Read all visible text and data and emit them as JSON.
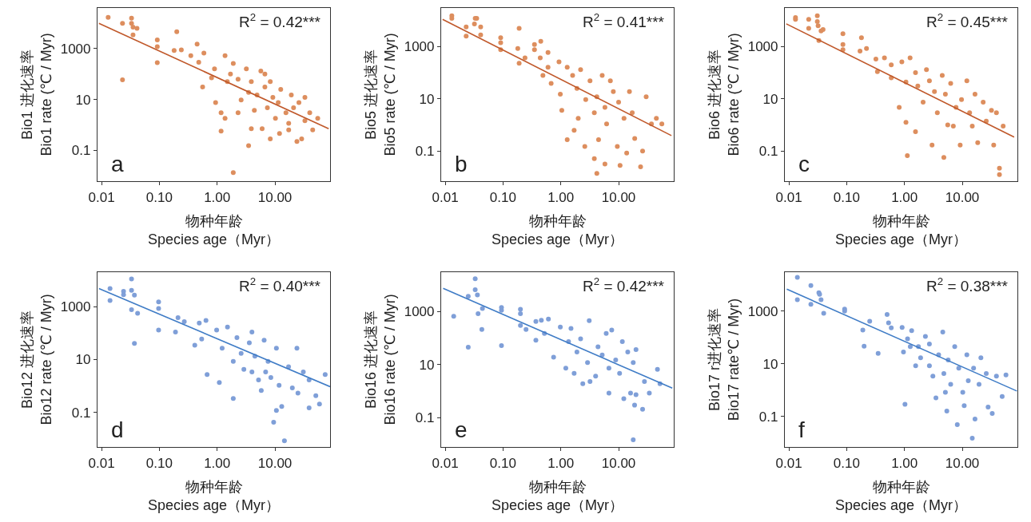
{
  "chart_data": [
    {
      "type": "scatter",
      "xlabel": "物种年龄\nSpecies age（Myr）",
      "ylabel": "Bio1 进化速率\nBio1 rate (℃ / Myr)",
      "annotations": [
        "R$^{2}$ = 0.42***",
        "a"
      ],
      "log": "xy",
      "grid": false,
      "marker": "circle",
      "xlim": [
        0.0085,
        90
      ],
      "xticks": [
        {
          "value": 0.01,
          "label": "0.01"
        },
        {
          "value": 0.1,
          "label": "0.10"
        },
        {
          "value": 1,
          "label": "1.00"
        },
        {
          "value": 10,
          "label": "10.00"
        }
      ],
      "ylim": [
        0.006,
        40000
      ],
      "yticks": [
        0.1,
        10,
        1000
      ],
      "series": [
        {
          "color": "#dd8e5e",
          "x": [
            0.013,
            0.023,
            0.033,
            0.033,
            0.035,
            0.041,
            0.035,
            0.023,
            0.092,
            0.092,
            0.092,
            0.2,
            0.18,
            0.24,
            0.35,
            0.45,
            0.59,
            0.48,
            0.56,
            0.9,
            0.8,
            0.94,
            1.17,
            1.37,
            1.5,
            1.9,
            2.3,
            2.6,
            3.2,
            3.5,
            3.9,
            4.4,
            4.9,
            5.7,
            6.7,
            7.4,
            8.3,
            9.2,
            10.2,
            11.4,
            12,
            12.6,
            15.5,
            17.3,
            19.2,
            21,
            26,
            33,
            40,
            45,
            55,
            24,
            3.5,
            1.9,
            1.37,
            1.17,
            2.3,
            6,
            8.3,
            29,
            17.3,
            33,
            1.7,
            3.9,
            6.7
          ],
          "values": [
            17000,
            10000,
            16000,
            10000,
            7100,
            6300,
            3500,
            59,
            2200,
            1200,
            280,
            4600,
            850,
            890,
            530,
            1500,
            670,
            290,
            31,
            160,
            71,
            7.5,
            0.56,
            530,
            50,
            260,
            63,
            9.5,
            160,
            19,
            50,
            3.7,
            15,
            130,
            31,
            4.7,
            50,
            12,
            1.8,
            7.5,
            0.45,
            25,
            3,
            1.15,
            15,
            4.7,
            7.5,
            1.45,
            3,
            0.63,
            1.8,
            0.22,
            0.15,
            0.013,
            1.8,
            3,
            3,
            0.7,
            0.28,
            0.28,
            0.63,
            12,
            100,
            0.7,
            100
          ]
        },
        {
          "type": "line",
          "marker": "none",
          "color": "#c0582a",
          "x": [
            0.009,
            85
          ],
          "values": [
            10000,
            0.7
          ]
        }
      ]
    },
    {
      "type": "scatter",
      "xlabel": "物种年龄\nSpecies age（Myr）",
      "ylabel": "Bio5 进化速率\nBio5 rate (℃ / Myr)",
      "annotations": [
        "R$^{2}$ = 0.41***",
        "b"
      ],
      "log": "xy",
      "grid": false,
      "marker": "circle",
      "xlim": [
        0.0085,
        90
      ],
      "xticks": [
        {
          "value": 0.01,
          "label": "0.01"
        },
        {
          "value": 0.1,
          "label": "0.10"
        },
        {
          "value": 1,
          "label": "1.00"
        },
        {
          "value": 10,
          "label": "10.00"
        }
      ],
      "ylim": [
        0.007,
        30000
      ],
      "yticks": [
        0.1,
        10,
        1000
      ],
      "series": [
        {
          "color": "#dd8e5e",
          "x": [
            0.013,
            0.013,
            0.023,
            0.023,
            0.033,
            0.035,
            0.032,
            0.041,
            0.041,
            0.091,
            0.091,
            0.091,
            0.18,
            0.19,
            0.19,
            0.24,
            0.35,
            0.35,
            0.45,
            0.44,
            0.6,
            0.6,
            0.49,
            0.68,
            0.93,
            0.98,
            1.04,
            1.29,
            1.29,
            1.6,
            1.7,
            1.9,
            2.0,
            2.2,
            2.6,
            2.7,
            3.2,
            3.8,
            4.2,
            4.2,
            4.5,
            5.2,
            5.8,
            6.2,
            7.2,
            8.1,
            9.5,
            10,
            10.6,
            12.4,
            13.8,
            15.4,
            17.2,
            19,
            24,
            30,
            26,
            37,
            45,
            56,
            5.8,
            3.8
          ],
          "values": [
            15000,
            12000,
            5600,
            2500,
            12000,
            12000,
            7400,
            5600,
            2800,
            2200,
            1400,
            760,
            850,
            5000,
            230,
            370,
            1200,
            760,
            1600,
            370,
            590,
            160,
            79,
            39,
            260,
            15,
            3.6,
            160,
            0.27,
            79,
            0.62,
            25,
            1.8,
            130,
            0.15,
            9.4,
            49,
            2.9,
            12,
            0.014,
            0.27,
            79,
            4.7,
            1.1,
            49,
            19,
            0.15,
            7.4,
            0.028,
            1.8,
            0.083,
            19,
            2.9,
            0.3,
            0.025,
            12,
            0.1,
            1.1,
            1.8,
            1.1,
            0.032,
            0.051
          ]
        },
        {
          "type": "line",
          "marker": "none",
          "color": "#c0582a",
          "x": [
            0.009,
            82
          ],
          "values": [
            11000,
            0.39
          ]
        }
      ]
    },
    {
      "type": "scatter",
      "xlabel": "物种年龄\nSpecies age（Myr）",
      "ylabel": "Bio6 进化速率\nBio6 rate (℃ / Myr)",
      "annotations": [
        "R$^{2}$ = 0.45***",
        "c"
      ],
      "log": "xy",
      "grid": false,
      "marker": "circle",
      "xlim": [
        0.0085,
        90
      ],
      "xticks": [
        {
          "value": 0.01,
          "label": "0.01"
        },
        {
          "value": 0.1,
          "label": "0.10"
        },
        {
          "value": 1,
          "label": "1.00"
        },
        {
          "value": 10,
          "label": "10.00"
        }
      ],
      "ylim": [
        0.007,
        30000
      ],
      "yticks": [
        0.1,
        10,
        1000
      ],
      "series": [
        {
          "color": "#dd8e5e",
          "x": [
            0.013,
            0.013,
            0.022,
            0.022,
            0.031,
            0.031,
            0.032,
            0.036,
            0.039,
            0.033,
            0.086,
            0.086,
            0.086,
            0.18,
            0.22,
            0.17,
            0.32,
            0.34,
            0.45,
            0.59,
            0.59,
            0.81,
            0.9,
            1.06,
            1.06,
            1.25,
            1.55,
            1.55,
            1.7,
            2.1,
            2.4,
            2.7,
            3.3,
            3.7,
            4.5,
            4.8,
            5.1,
            5.6,
            6.3,
            7.8,
            9.2,
            9.7,
            12,
            13.4,
            14.9,
            16.6,
            18.5,
            23,
            26,
            32,
            35,
            39,
            44,
            44,
            51,
            3.0,
            1.12,
            7
          ],
          "values": [
            13000,
            11000,
            11000,
            5000,
            15000,
            9100,
            6300,
            4000,
            4500,
            1700,
            3100,
            1200,
            760,
            2200,
            850,
            670,
            330,
            110,
            370,
            200,
            63,
            4.7,
            260,
            44,
            1.26,
            370,
            100,
            0.55,
            31,
            7.4,
            130,
            49,
            19,
            2.9,
            79,
            0.057,
            15,
            1.0,
            39,
            4.7,
            0.17,
            9.4,
            49,
            2.9,
            0.9,
            15,
            0.21,
            7.4,
            1.4,
            3.6,
            0.17,
            2.9,
            0.022,
            0.0125,
            0.9,
            0.17,
            0.066,
            0.9
          ]
        },
        {
          "type": "line",
          "marker": "none",
          "color": "#c0582a",
          "x": [
            0.009,
            79
          ],
          "values": [
            7400,
            0.34
          ]
        }
      ]
    },
    {
      "type": "scatter",
      "xlabel": "物种年龄\nSpecies age（Myr）",
      "ylabel": "Bio12 进化速率\nBio12 rate (℃ / Myr)",
      "annotations": [
        "R$^{2}$ = 0.40***",
        "d"
      ],
      "log": "xy",
      "grid": false,
      "marker": "circle",
      "xlim": [
        0.0085,
        90
      ],
      "xticks": [
        {
          "value": 0.01,
          "label": "0.01"
        },
        {
          "value": 0.1,
          "label": "0.10"
        },
        {
          "value": 1,
          "label": "1.00"
        },
        {
          "value": 10,
          "label": "10.00"
        }
      ],
      "ylim": [
        0.005,
        20000
      ],
      "yticks": [
        0.1,
        10,
        1000
      ],
      "series": [
        {
          "color": "#7f9fd8",
          "x": [
            0.014,
            0.014,
            0.024,
            0.024,
            0.033,
            0.033,
            0.037,
            0.033,
            0.042,
            0.037,
            0.097,
            0.097,
            0.097,
            0.21,
            0.19,
            0.27,
            0.41,
            0.49,
            0.64,
            0.67,
            0.54,
            0.98,
            1.09,
            1.22,
            1.51,
            1.9,
            1.9,
            2.2,
            2.6,
            2.9,
            3.6,
            4.0,
            4.5,
            5.2,
            5.8,
            6.5,
            7.6,
            8.5,
            9.5,
            10.6,
            11.8,
            13.1,
            14.6,
            17.2,
            20,
            24,
            25,
            31,
            39,
            51,
            59,
            39,
            74,
            10.6,
            4.0,
            6.9
          ],
          "values": [
            4800,
            1700,
            3800,
            2800,
            11000,
            4100,
            2700,
            760,
            560,
            41,
            1500,
            850,
            130,
            380,
            110,
            270,
            35,
            240,
            300,
            2.7,
            60,
            130,
            1.35,
            27,
            170,
            0.34,
            8.5,
            68,
            17,
            4.3,
            43,
            110,
            13.5,
            1.7,
            0.68,
            54,
            8.5,
            2.1,
            0.043,
            27,
            1.07,
            0.17,
            0.0085,
            5.4,
            0.85,
            27,
            0.54,
            3.4,
            1.7,
            0.43,
            0.21,
            0.15,
            2.7,
            0.12,
            3.4,
            3.4
          ]
        },
        {
          "type": "line",
          "marker": "none",
          "color": "#3f7cc6",
          "x": [
            0.009,
            90
          ],
          "values": [
            4800,
            0.95
          ]
        }
      ]
    },
    {
      "type": "scatter",
      "xlabel": "物种年龄\nSpecies age（Myr）",
      "ylabel": "Bio16 进化速率\nBio16 rate (℃ / Myr)",
      "annotations": [
        "R$^{2}$ = 0.42***",
        "e"
      ],
      "log": "xy",
      "grid": false,
      "marker": "circle",
      "xlim": [
        0.0085,
        90
      ],
      "xticks": [
        {
          "value": 0.01,
          "label": "0.01"
        },
        {
          "value": 0.1,
          "label": "0.10"
        },
        {
          "value": 1,
          "label": "1.00"
        },
        {
          "value": 10,
          "label": "10.00"
        }
      ],
      "ylim": [
        0.008,
        30000
      ],
      "yticks": [
        0.1,
        10,
        1000
      ],
      "series": [
        {
          "color": "#7f9fd8",
          "x": [
            0.014,
            0.025,
            0.025,
            0.033,
            0.033,
            0.036,
            0.037,
            0.044,
            0.043,
            0.094,
            0.094,
            0.094,
            0.2,
            0.2,
            0.2,
            0.25,
            0.37,
            0.37,
            0.46,
            0.52,
            0.61,
            0.75,
            0.98,
            1.22,
            1.36,
            1.5,
            1.9,
            2.2,
            2.4,
            2.9,
            3.1,
            4.0,
            4.4,
            5.2,
            6.1,
            6.8,
            7.6,
            8.9,
            10.4,
            12.3,
            14.4,
            16.1,
            17.9,
            18.9,
            20,
            20,
            26,
            28,
            34,
            47,
            52,
            17.9,
            3.2,
            1.7,
            6.8,
            11.6
          ],
          "values": [
            660,
            3700,
            45,
            17000,
            6600,
            4200,
            830,
            1300,
            210,
            1400,
            1100,
            52,
            1200,
            830,
            300,
            210,
            83,
            420,
            470,
            150,
            520,
            19,
            260,
            7.4,
            74,
            230,
            30,
            93,
            1.9,
            12,
            450,
            3.7,
            47,
            23,
            150,
            7.4,
            200,
            15,
            4.7,
            0.52,
            30,
            0.85,
            12,
            0.3,
            37,
            0.74,
            0.21,
            2.3,
            0.85,
            6.6,
            1.9,
            0.015,
            2.3,
            4.7,
            0.85,
            74
          ]
        },
        {
          "type": "line",
          "marker": "none",
          "color": "#3f7cc6",
          "x": [
            0.0092,
            85
          ],
          "values": [
            7400,
            1.3
          ]
        }
      ]
    },
    {
      "type": "scatter",
      "xlabel": "物种年龄\nSpecies age（Myr）",
      "ylabel": "Bio17 r进化速率\nBio17 rate℃ / Myr)",
      "annotations": [
        "R$^{2}$ = 0.38***",
        "f"
      ],
      "log": "xy",
      "grid": false,
      "marker": "circle",
      "xlim": [
        0.0085,
        90
      ],
      "xticks": [
        {
          "value": 0.01,
          "label": "0.01"
        },
        {
          "value": 0.1,
          "label": "0.10"
        },
        {
          "value": 1,
          "label": "1.00"
        },
        {
          "value": 10,
          "label": "10.00"
        }
      ],
      "ylim": [
        0.007,
        30000
      ],
      "yticks": [
        0.1,
        10,
        1000
      ],
      "series": [
        {
          "color": "#7f9fd8",
          "x": [
            0.014,
            0.014,
            0.024,
            0.024,
            0.033,
            0.034,
            0.036,
            0.04,
            0.092,
            0.092,
            0.19,
            0.2,
            0.25,
            0.35,
            0.5,
            0.53,
            0.59,
            0.91,
            0.96,
            1.02,
            1.13,
            1.33,
            1.56,
            1.74,
            1.9,
            2.3,
            2.7,
            3.1,
            3.5,
            3.9,
            4.6,
            4.8,
            5.4,
            5.7,
            6.3,
            7.4,
            8.2,
            8.7,
            10.2,
            12,
            12.7,
            14.9,
            15.7,
            16.6,
            19.5,
            21,
            26,
            28,
            33,
            39,
            49,
            57,
            5.1,
            2.7,
            1.26,
            10.8
          ],
          "values": [
            19000,
            2700,
            9300,
            1800,
            5000,
            4300,
            2700,
            830,
            1200,
            1000,
            190,
            47,
            410,
            25,
            740,
            360,
            230,
            240,
            28,
            0.29,
            89,
            180,
            8.5,
            45,
            17,
            110,
            56,
            3.4,
            0.51,
            22,
            160,
            4.3,
            0.16,
            14,
            1.66,
            45,
            0.049,
            6.8,
            0.83,
            22,
            2.3,
            0.015,
            6.8,
            0.08,
            1.66,
            17,
            4.3,
            0.23,
            0.13,
            3.4,
            0.58,
            3.8,
            0.83,
            8.5,
            45,
            0.26
          ]
        },
        {
          "type": "line",
          "marker": "none",
          "color": "#3f7cc6",
          "x": [
            0.0092,
            88
          ],
          "values": [
            6800,
            0.93
          ]
        }
      ]
    }
  ]
}
